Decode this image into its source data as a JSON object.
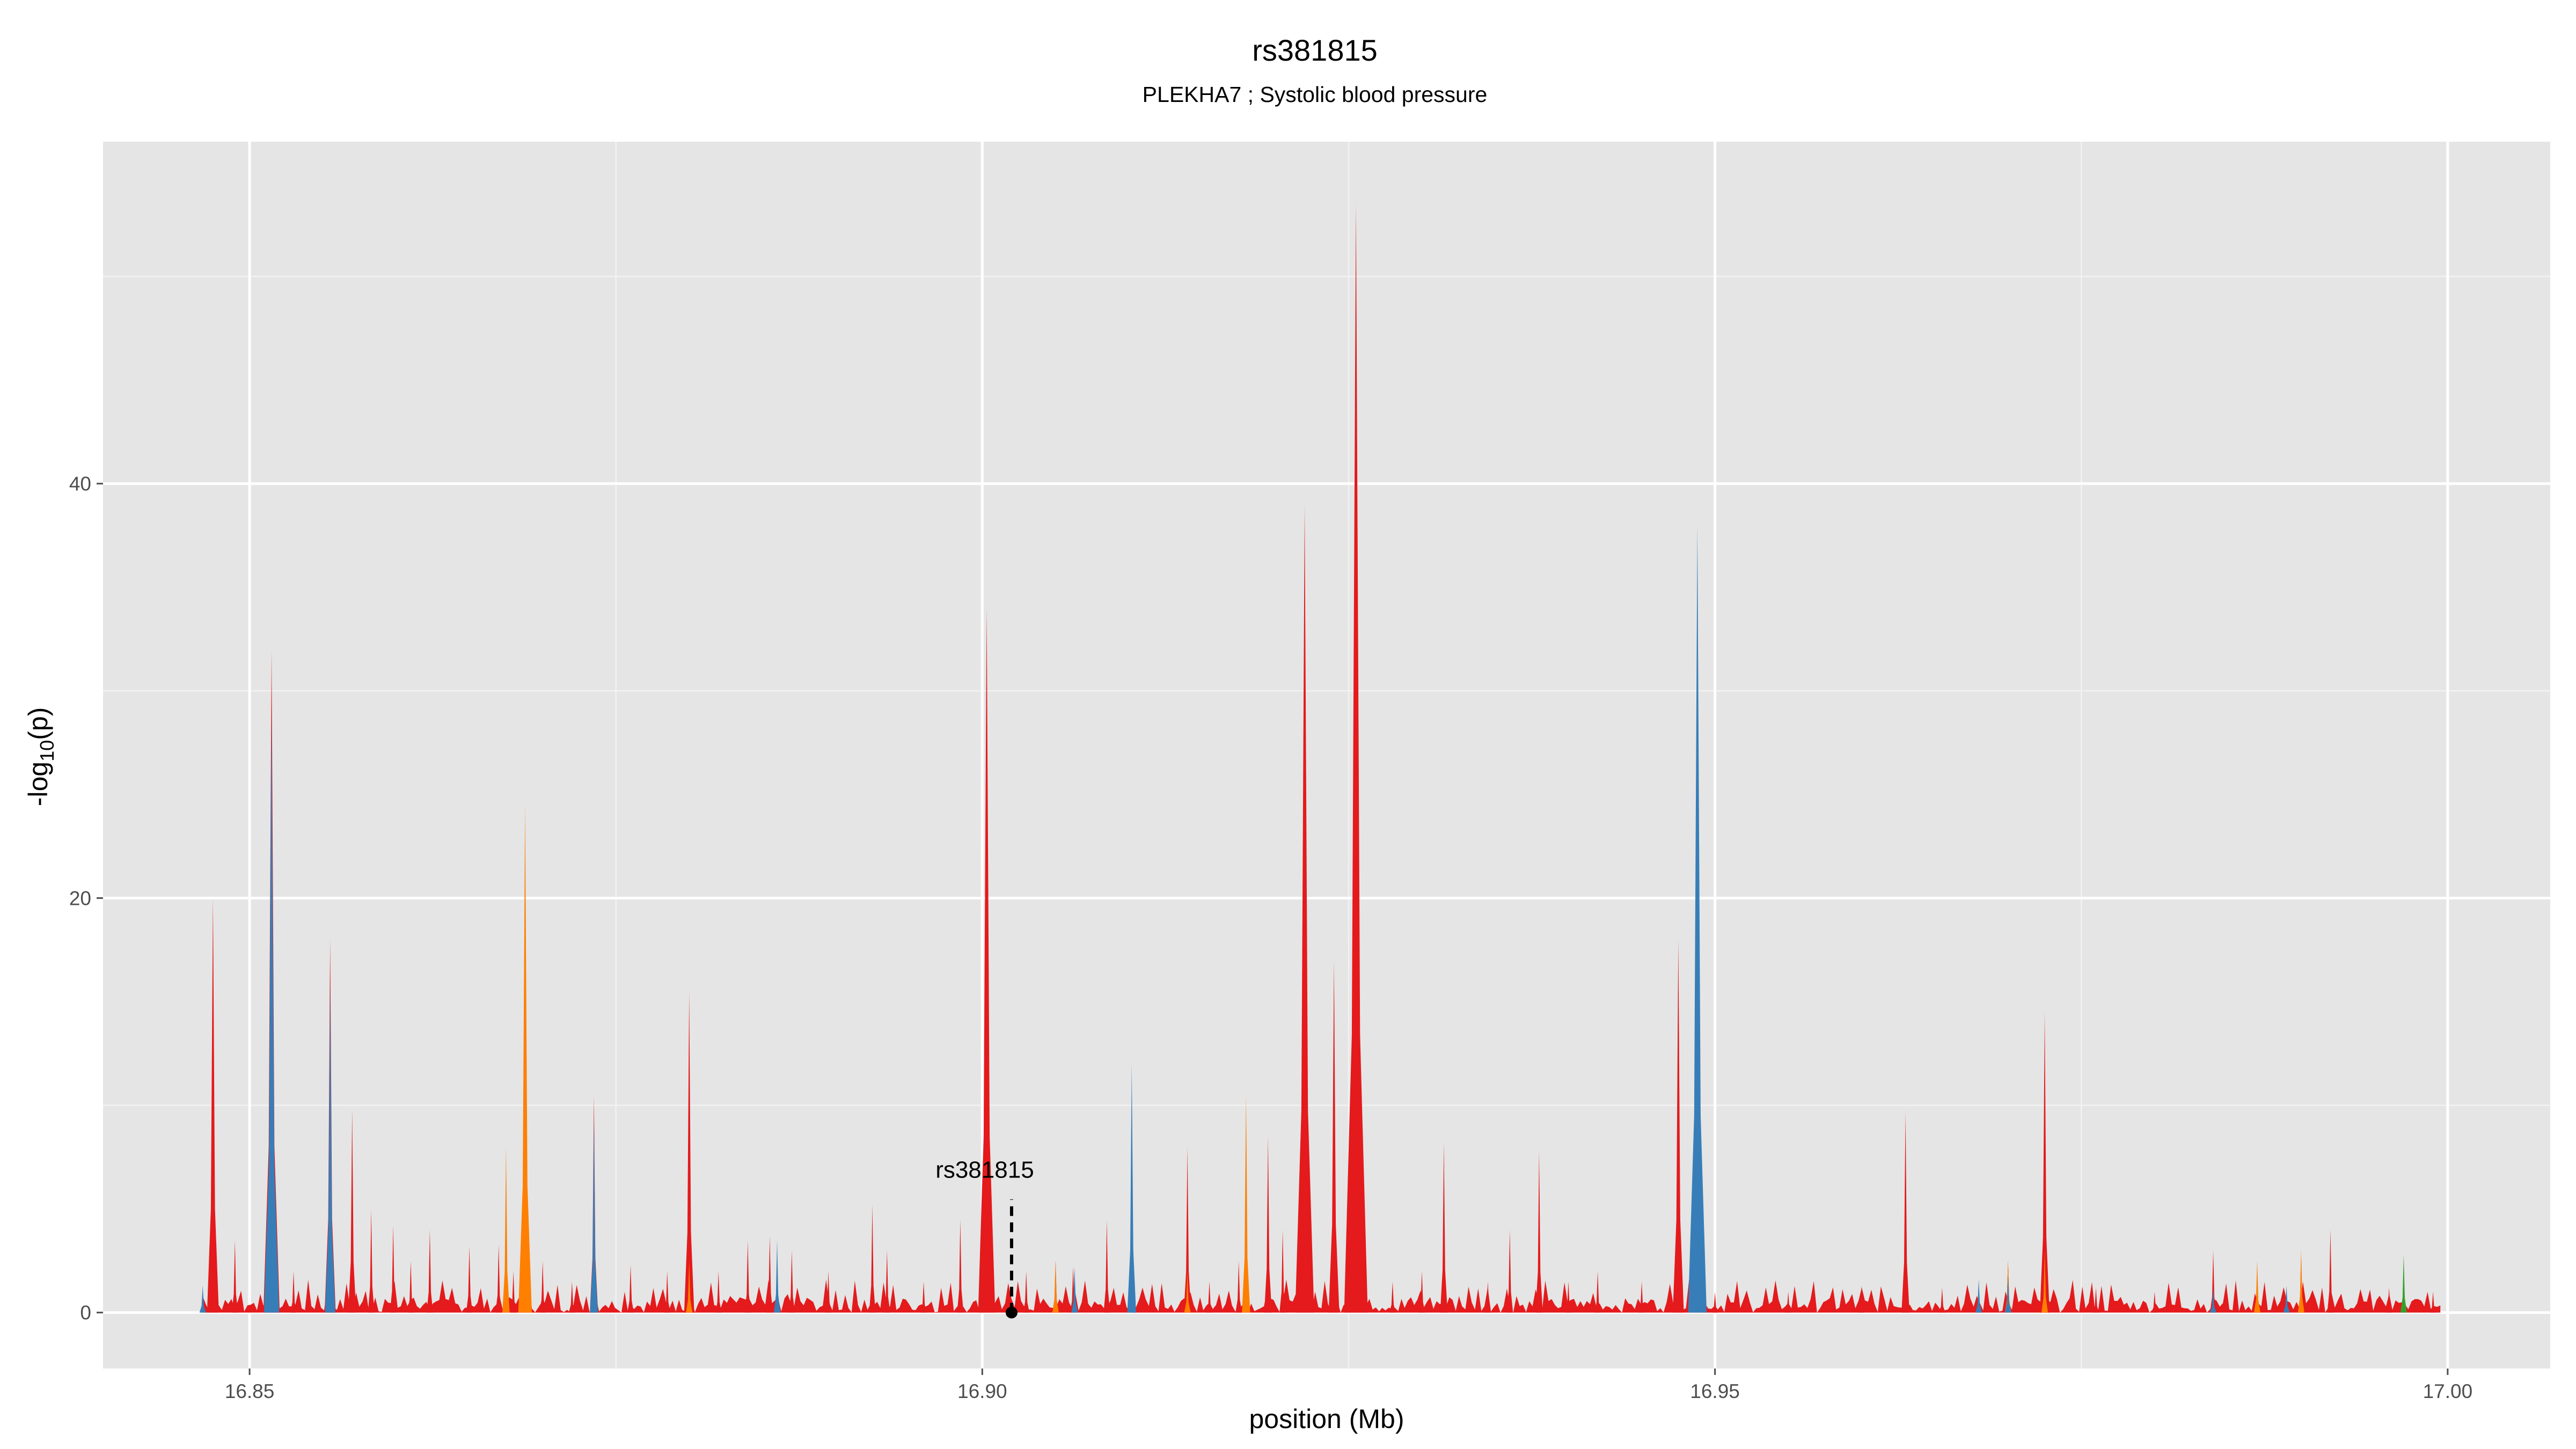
{
  "chart_data": {
    "type": "area",
    "title": "rs381815",
    "subtitle": "PLEKHA7 ; Systolic blood pressure",
    "xlabel": "position (Mb)",
    "ylabel": "-log10(p)",
    "ylabel_main": "-log",
    "ylabel_sub": "10",
    "ylabel_tail": "(p)",
    "xlim": [
      16.84,
      17.007
    ],
    "ylim": [
      -2.7,
      56.5
    ],
    "xticks": [
      16.85,
      16.9,
      16.95,
      17.0
    ],
    "xtick_labels": [
      "16.85",
      "16.90",
      "16.95",
      "17.00"
    ],
    "yticks": [
      0,
      20,
      40
    ],
    "ytick_labels": [
      "0",
      "20",
      "40"
    ],
    "grid": true,
    "annotation": {
      "label": "rs381815",
      "x": 16.902,
      "y": 0,
      "label_y": 6.5
    },
    "colors": {
      "red": "#e41a1c",
      "orange": "#ff7f00",
      "blue": "#377eb8",
      "green": "#33a02c",
      "purple": "#984ea3",
      "panel": "#e5e5e5",
      "grid": "#ffffff"
    },
    "series": [
      {
        "color_key": "red",
        "peaks": [
          [
            16.8475,
            20
          ],
          [
            16.849,
            3.5
          ],
          [
            16.8515,
            32
          ],
          [
            16.853,
            2
          ],
          [
            16.8555,
            18
          ],
          [
            16.857,
            9.8
          ],
          [
            16.8583,
            5
          ],
          [
            16.8598,
            4.2
          ],
          [
            16.861,
            2.5
          ],
          [
            16.8623,
            4
          ],
          [
            16.865,
            3.2
          ],
          [
            16.867,
            3.3
          ],
          [
            16.868,
            2
          ],
          [
            16.87,
            2.5
          ],
          [
            16.872,
            1.5
          ],
          [
            16.8735,
            10.5
          ],
          [
            16.876,
            2.3
          ],
          [
            16.8785,
            2
          ],
          [
            16.88,
            15.5
          ],
          [
            16.882,
            2
          ],
          [
            16.884,
            3.5
          ],
          [
            16.8855,
            3.7
          ],
          [
            16.887,
            3
          ],
          [
            16.8895,
            2
          ],
          [
            16.8925,
            5.2
          ],
          [
            16.8935,
            3
          ],
          [
            16.896,
            1.5
          ],
          [
            16.8985,
            4.5
          ],
          [
            16.9003,
            34
          ],
          [
            16.903,
            2
          ],
          [
            16.905,
            2.5
          ],
          [
            16.9062,
            2.2
          ],
          [
            16.9085,
            4.5
          ],
          [
            16.9103,
            3
          ],
          [
            16.914,
            8
          ],
          [
            16.9155,
            1.5
          ],
          [
            16.9175,
            2.5
          ],
          [
            16.9195,
            8.5
          ],
          [
            16.9205,
            4
          ],
          [
            16.922,
            39
          ],
          [
            16.924,
            17
          ],
          [
            16.9255,
            53.5
          ],
          [
            16.928,
            1.5
          ],
          [
            16.93,
            2
          ],
          [
            16.9315,
            8.2
          ],
          [
            16.9345,
            1.5
          ],
          [
            16.936,
            4
          ],
          [
            16.938,
            7.8
          ],
          [
            16.94,
            1.5
          ],
          [
            16.942,
            2
          ],
          [
            16.945,
            1.5
          ],
          [
            16.9475,
            18
          ],
          [
            16.95,
            1
          ],
          [
            16.955,
            1
          ],
          [
            16.96,
            1.3
          ],
          [
            16.963,
            9.7
          ],
          [
            16.9655,
            1.2
          ],
          [
            16.968,
            1.3
          ],
          [
            16.97,
            2.5
          ],
          [
            16.9725,
            14.5
          ],
          [
            16.976,
            1.2
          ],
          [
            16.98,
            1
          ],
          [
            16.984,
            3
          ],
          [
            16.987,
            1.5
          ],
          [
            16.99,
            2.8
          ],
          [
            16.992,
            4
          ],
          [
            16.996,
            1.2
          ],
          [
            16.999,
            1
          ]
        ]
      },
      {
        "color_key": "orange",
        "peaks": [
          [
            16.8675,
            8
          ],
          [
            16.8688,
            24.5
          ],
          [
            16.88,
            2.5
          ],
          [
            16.905,
            2.5
          ],
          [
            16.918,
            10.5
          ],
          [
            16.914,
            2
          ],
          [
            16.97,
            2.5
          ],
          [
            16.9725,
            3
          ],
          [
            16.987,
            2.5
          ],
          [
            16.99,
            3
          ]
        ]
      },
      {
        "color_key": "blue",
        "peaks": [
          [
            16.8468,
            1.3
          ],
          [
            16.8515,
            29
          ],
          [
            16.8555,
            16
          ],
          [
            16.8735,
            9.5
          ],
          [
            16.886,
            3.5
          ],
          [
            16.9063,
            2.2
          ],
          [
            16.9102,
            12
          ],
          [
            16.9488,
            38
          ],
          [
            16.968,
            1.6
          ],
          [
            16.97,
            1.8
          ],
          [
            16.984,
            1.2
          ],
          [
            16.989,
            1.3
          ]
        ]
      },
      {
        "color_key": "green",
        "peaks": [
          [
            16.997,
            2.8
          ]
        ]
      }
    ]
  }
}
